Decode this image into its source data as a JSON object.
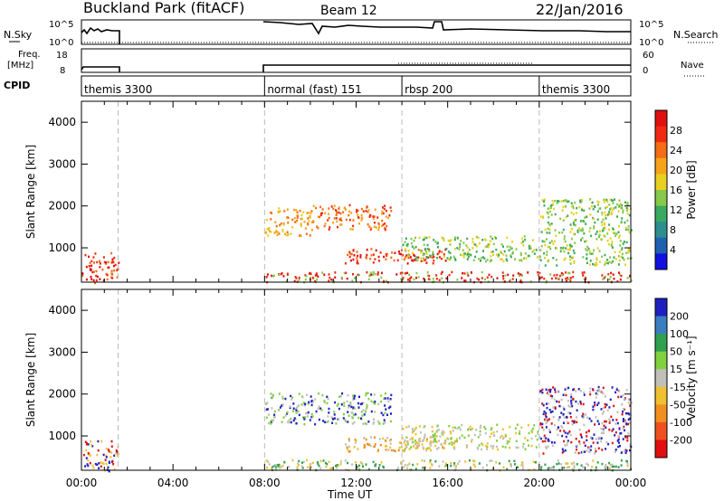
{
  "header": {
    "title": "Buckland Park (fitACF)",
    "beam": "Beam 12",
    "date": "22/Jan/2016"
  },
  "noise_panel": {
    "left_label": "N.Sky",
    "left_ticks": [
      "10^5",
      "10^0"
    ],
    "right_label": "N.Search",
    "right_ticks": [
      "10^5",
      "10^0"
    ]
  },
  "freq_panel": {
    "left_label_1": "Freq.",
    "left_label_2": "[MHz]",
    "left_ticks": [
      "18",
      "8"
    ],
    "right_label": "Nave",
    "right_ticks": [
      "60",
      "0"
    ]
  },
  "cpid_panel": {
    "label": "CPID",
    "segments": [
      {
        "name": "themis 3300",
        "start": 0.0
      },
      {
        "name": "normal (fast) 151",
        "start": 8.0
      },
      {
        "name": "rbsp 200",
        "start": 14.0
      },
      {
        "name": "themis 3300",
        "start": 20.0
      }
    ]
  },
  "chart_data": [
    {
      "type": "heatmap",
      "ylabel": "Slant Range [km]",
      "yticks": [
        1000,
        2000,
        3000,
        4000
      ],
      "ylim": [
        180,
        4500
      ],
      "xlim": [
        0,
        24
      ],
      "colorbar": {
        "label": "Power [dB]",
        "ticks": [
          "4",
          "8",
          "12",
          "16",
          "20",
          "24",
          "28"
        ],
        "colors": [
          "#1010e0",
          "#2060b0",
          "#2e8e8e",
          "#3aaa60",
          "#88c84a",
          "#e8d020",
          "#f6a41a",
          "#f56d14",
          "#ef2a10",
          "#e01010"
        ]
      },
      "regions": [
        {
          "t0": 0.0,
          "t1": 1.6,
          "r0": 180,
          "r1": 900,
          "levels": [
            8,
            7,
            9
          ]
        },
        {
          "t0": 8.0,
          "t1": 10.0,
          "r0": 1300,
          "r1": 2000,
          "levels": [
            6,
            7,
            5
          ]
        },
        {
          "t0": 10.0,
          "t1": 13.5,
          "r0": 1450,
          "r1": 2050,
          "levels": [
            7,
            6,
            8
          ]
        },
        {
          "t0": 11.5,
          "t1": 16.0,
          "r0": 650,
          "r1": 1000,
          "levels": [
            8,
            9,
            7
          ]
        },
        {
          "t0": 8.0,
          "t1": 24.0,
          "r0": 200,
          "r1": 450,
          "levels": [
            8,
            9,
            4
          ]
        },
        {
          "t0": 20.0,
          "t1": 24.0,
          "r0": 600,
          "r1": 2200,
          "levels": [
            3,
            4,
            5
          ]
        },
        {
          "t0": 14.0,
          "t1": 20.0,
          "r0": 700,
          "r1": 1300,
          "levels": [
            4,
            5,
            3
          ]
        }
      ]
    },
    {
      "type": "heatmap",
      "ylabel": "Slant Range [km]",
      "xlabel": "Time UT",
      "xticks": [
        "00:00",
        "04:00",
        "08:00",
        "12:00",
        "16:00",
        "20:00",
        "00:00"
      ],
      "yticks": [
        1000,
        2000,
        3000,
        4000
      ],
      "ylim": [
        180,
        4500
      ],
      "xlim": [
        0,
        24
      ],
      "colorbar": {
        "label": "Velocity [m s⁻¹]",
        "ticks": [
          "200",
          "100",
          "50",
          "15",
          "-15",
          "-50",
          "-100",
          "-200"
        ],
        "colors": [
          "#2020c0",
          "#3a7ec0",
          "#30a050",
          "#80d040",
          "#c0c0b8",
          "#f0c030",
          "#f09020",
          "#f05020",
          "#e01010"
        ]
      },
      "regions": [
        {
          "t0": 0.0,
          "t1": 1.6,
          "r0": 180,
          "r1": 900,
          "levels": [
            0,
            8,
            5
          ]
        },
        {
          "t0": 8.0,
          "t1": 13.5,
          "r0": 1300,
          "r1": 2050,
          "levels": [
            3,
            4,
            0
          ]
        },
        {
          "t0": 11.5,
          "t1": 16.0,
          "r0": 650,
          "r1": 1000,
          "levels": [
            5,
            6,
            4
          ]
        },
        {
          "t0": 8.0,
          "t1": 24.0,
          "r0": 200,
          "r1": 450,
          "levels": [
            4,
            5,
            2
          ]
        },
        {
          "t0": 20.0,
          "t1": 24.0,
          "r0": 600,
          "r1": 2200,
          "levels": [
            0,
            8,
            4
          ]
        },
        {
          "t0": 14.0,
          "t1": 20.0,
          "r0": 700,
          "r1": 1300,
          "levels": [
            4,
            5,
            3
          ]
        }
      ]
    }
  ]
}
